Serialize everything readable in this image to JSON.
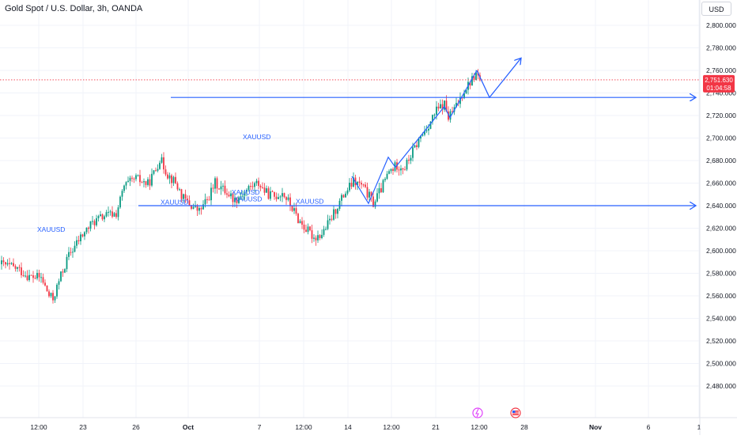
{
  "header": {
    "title": "Gold Spot / U.S. Dollar, 3h, OANDA",
    "currency": "USD"
  },
  "price_badge": {
    "price": "2,751.630",
    "countdown": "01:04:58",
    "color": "#f23645"
  },
  "colors": {
    "up": "#089981",
    "down": "#f23645",
    "drawing": "#2962ff",
    "grid": "#f0f3fa",
    "axis_text": "#131722"
  },
  "chart_data": {
    "type": "candlestick",
    "title": "Gold Spot / U.S. Dollar, 3h, OANDA",
    "ylim": [
      2470,
      2825
    ],
    "y_ticks": [
      "2,480.000",
      "2,500.000",
      "2,520.000",
      "2,540.000",
      "2,560.000",
      "2,580.000",
      "2,600.000",
      "2,620.000",
      "2,640.000",
      "2,660.000",
      "2,680.000",
      "2,700.000",
      "2,720.000",
      "2,740.000",
      "2,760.000",
      "2,780.000",
      "2,800.000"
    ],
    "x_ticks": [
      "12:00",
      "23",
      "26",
      "Oct",
      "7",
      "12:00",
      "14",
      "12:00",
      "21",
      "12:00",
      "28",
      "Nov",
      "6",
      "1"
    ],
    "current_price": 2751.63,
    "anchors": [
      [
        0,
        2588
      ],
      [
        8,
        2584
      ],
      [
        14,
        2577
      ],
      [
        20,
        2576
      ],
      [
        24,
        2560
      ],
      [
        26,
        2557
      ],
      [
        30,
        2578
      ],
      [
        34,
        2596
      ],
      [
        40,
        2612
      ],
      [
        46,
        2625
      ],
      [
        52,
        2631
      ],
      [
        58,
        2633
      ],
      [
        62,
        2657
      ],
      [
        68,
        2664
      ],
      [
        74,
        2659
      ],
      [
        78,
        2672
      ],
      [
        80,
        2682
      ],
      [
        84,
        2668
      ],
      [
        88,
        2660
      ],
      [
        92,
        2646
      ],
      [
        96,
        2640
      ],
      [
        100,
        2635
      ],
      [
        104,
        2645
      ],
      [
        108,
        2660
      ],
      [
        114,
        2652
      ],
      [
        118,
        2645
      ],
      [
        122,
        2651
      ],
      [
        126,
        2657
      ],
      [
        130,
        2660
      ],
      [
        134,
        2651
      ],
      [
        138,
        2648
      ],
      [
        142,
        2652
      ],
      [
        146,
        2641
      ],
      [
        150,
        2628
      ],
      [
        154,
        2619
      ],
      [
        158,
        2612
      ],
      [
        162,
        2615
      ],
      [
        166,
        2626
      ],
      [
        170,
        2640
      ],
      [
        174,
        2652
      ],
      [
        178,
        2661
      ],
      [
        182,
        2658
      ],
      [
        186,
        2648
      ],
      [
        188,
        2642
      ],
      [
        192,
        2655
      ],
      [
        196,
        2670
      ],
      [
        200,
        2676
      ],
      [
        204,
        2674
      ],
      [
        208,
        2688
      ],
      [
        212,
        2701
      ],
      [
        216,
        2712
      ],
      [
        220,
        2724
      ],
      [
        224,
        2730
      ],
      [
        226,
        2718
      ],
      [
        230,
        2728
      ],
      [
        234,
        2743
      ],
      [
        238,
        2752
      ],
      [
        240,
        2757
      ],
      [
        242,
        2751.6
      ]
    ],
    "drawings": {
      "horizontal_rays": [
        2736,
        2640
      ],
      "annotations": [
        {
          "text": "XAUUSD",
          "price": 2619
        },
        {
          "text": "XAUUSD",
          "price": 2643
        },
        {
          "text": "XAUUSD",
          "price": 2701
        },
        {
          "text": "XAUUSD",
          "price": 2652
        },
        {
          "text": "XAUUSD",
          "price": 2646
        },
        {
          "text": "XAUUSD",
          "price": 2644
        }
      ],
      "zigzag_path": [
        2666,
        2642,
        2683,
        2674,
        2728,
        2718,
        2760
      ],
      "forecast_path": [
        2760,
        2736,
        2771
      ]
    }
  }
}
